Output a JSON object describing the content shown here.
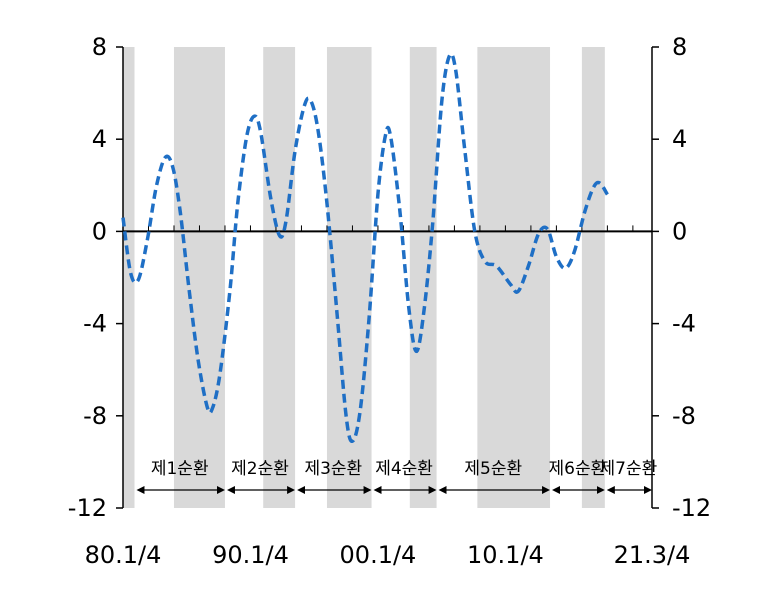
{
  "chart_data": {
    "type": "line",
    "title": "",
    "xlabel": "",
    "ylabel": "",
    "ylim": [
      -12,
      8
    ],
    "y_ticks": [
      "8",
      "4",
      "0",
      "-4",
      "-8",
      "-12"
    ],
    "y_tick_values": [
      8,
      4,
      0,
      -4,
      -8,
      -12
    ],
    "x_range": [
      1980.0,
      2021.5
    ],
    "x_tick_labels": [
      "80.1/4",
      "90.1/4",
      "00.1/4",
      "10.1/4",
      "21.3/4"
    ],
    "x_tick_values": [
      1980.0,
      1990.0,
      2000.0,
      2010.0,
      2021.5
    ],
    "grid": false,
    "zero_line": true,
    "shaded_periods": [
      [
        1980.0,
        1980.9
      ],
      [
        1984.0,
        1988.0
      ],
      [
        1991.0,
        1993.5
      ],
      [
        1996.0,
        1999.5
      ],
      [
        2002.5,
        2004.6
      ],
      [
        2007.8,
        2013.5
      ],
      [
        2016.0,
        2017.8
      ]
    ],
    "cycles": [
      {
        "label": "제1순환",
        "start": 1980.9,
        "end": 1988.0
      },
      {
        "label": "제2순환",
        "start": 1988.0,
        "end": 1993.5
      },
      {
        "label": "제3순환",
        "start": 1993.5,
        "end": 1999.5
      },
      {
        "label": "제4순환",
        "start": 1999.5,
        "end": 2004.6
      },
      {
        "label": "제5순환",
        "start": 2004.6,
        "end": 2013.5
      },
      {
        "label": "제6순환",
        "start": 2013.5,
        "end": 2017.8
      },
      {
        "label": "제7순환",
        "start": 2017.8,
        "end": 2021.5
      }
    ],
    "series": [
      {
        "color": "#1F6FC5",
        "style": "dashed",
        "points": [
          [
            1980.0,
            0.6
          ],
          [
            1980.6,
            -1.8
          ],
          [
            1981.2,
            -2.1
          ],
          [
            1981.9,
            -0.4
          ],
          [
            1982.6,
            1.9
          ],
          [
            1983.3,
            3.2
          ],
          [
            1983.9,
            2.8
          ],
          [
            1984.5,
            0.8
          ],
          [
            1985.2,
            -2.6
          ],
          [
            1985.9,
            -5.6
          ],
          [
            1986.6,
            -7.6
          ],
          [
            1987.0,
            -7.7
          ],
          [
            1987.6,
            -6.2
          ],
          [
            1988.4,
            -2.5
          ],
          [
            1989.0,
            1.2
          ],
          [
            1989.7,
            4.1
          ],
          [
            1990.3,
            5.0
          ],
          [
            1990.8,
            4.3
          ],
          [
            1991.6,
            1.4
          ],
          [
            1992.3,
            -0.2
          ],
          [
            1992.8,
            0.5
          ],
          [
            1993.5,
            3.5
          ],
          [
            1994.2,
            5.4
          ],
          [
            1994.7,
            5.7
          ],
          [
            1995.3,
            4.4
          ],
          [
            1996.0,
            1.2
          ],
          [
            1996.8,
            -3.6
          ],
          [
            1997.5,
            -8.0
          ],
          [
            1998.0,
            -9.1
          ],
          [
            1998.6,
            -7.8
          ],
          [
            1999.3,
            -3.8
          ],
          [
            2000.0,
            1.6
          ],
          [
            2000.6,
            4.2
          ],
          [
            2001.0,
            4.1
          ],
          [
            2001.7,
            1.0
          ],
          [
            2002.4,
            -3.2
          ],
          [
            2003.0,
            -5.2
          ],
          [
            2003.6,
            -3.5
          ],
          [
            2004.3,
            0.4
          ],
          [
            2005.0,
            5.6
          ],
          [
            2005.6,
            7.6
          ],
          [
            2006.1,
            7.0
          ],
          [
            2006.8,
            3.6
          ],
          [
            2007.6,
            0.0
          ],
          [
            2008.4,
            -1.3
          ],
          [
            2009.3,
            -1.5
          ],
          [
            2010.4,
            -2.3
          ],
          [
            2011.0,
            -2.6
          ],
          [
            2011.8,
            -1.5
          ],
          [
            2012.6,
            -0.1
          ],
          [
            2013.3,
            0.1
          ],
          [
            2014.0,
            -1.1
          ],
          [
            2014.7,
            -1.6
          ],
          [
            2015.4,
            -0.9
          ],
          [
            2016.2,
            0.8
          ],
          [
            2016.9,
            1.9
          ],
          [
            2017.4,
            2.1
          ],
          [
            2018.0,
            1.6
          ]
        ]
      }
    ]
  }
}
